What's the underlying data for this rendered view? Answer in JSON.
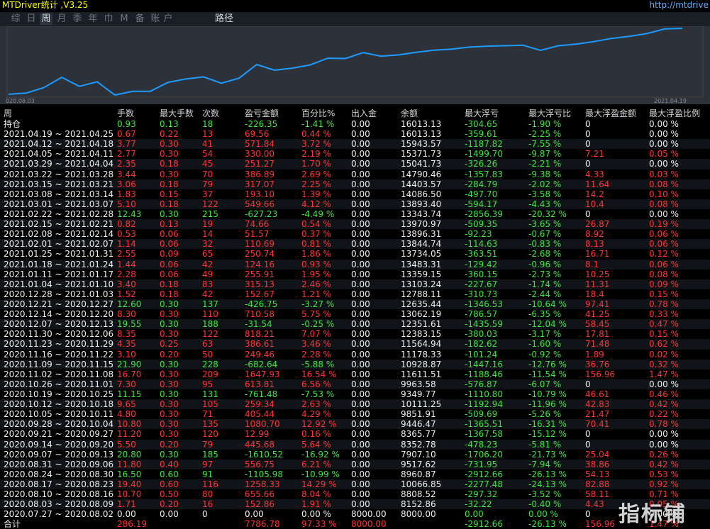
{
  "app": {
    "title": "MTDriver统计 ,V3.25",
    "link": "http://mtdrive"
  },
  "tabs": [
    "综",
    "日",
    "周",
    "月",
    "季",
    "年",
    "巾",
    "M",
    "备",
    "账",
    "户"
  ],
  "path_tab": "路径",
  "active_tab": "周",
  "chart": {
    "start_label": "020.08.03",
    "end_label": "2021.04.19",
    "line_color": "#1e9bff",
    "balance": [
      8000.0,
      8152.86,
      8808.52,
      10066.85,
      8960.87,
      9517.62,
      7907.1,
      8352.78,
      8365.77,
      9446.47,
      9851.91,
      10111.25,
      9349.77,
      9963.58,
      11611.51,
      10928.87,
      11178.33,
      11564.94,
      12383.15,
      12351.61,
      13062.19,
      12635.44,
      12788.11,
      13103.24,
      13359.15,
      13483.31,
      13734.05,
      13844.74,
      13896.31,
      13970.97,
      13343.74,
      13893.4,
      14086.5,
      14403.57,
      14790.46,
      15041.73,
      15371.73,
      15943.57,
      16013.13
    ]
  },
  "columns": [
    "周",
    "手数",
    "最大手数",
    "次数",
    "盈亏金额",
    "百分比%",
    "出入金",
    "余额",
    "最大浮亏",
    "最大浮亏比",
    "最大浮盈金额",
    "最大浮盈比例"
  ],
  "colors": {
    "loss": "#ff3535",
    "win": "#3ee63e",
    "neutral": "#f0f0f0"
  },
  "holding_row": [
    "持仓",
    "0.93",
    "0.13",
    "18",
    "-226.35",
    "-1.41 %",
    "0.00",
    "16013.13",
    "-304.65",
    "-1.90 %",
    "0",
    "0.00 %"
  ],
  "rows": [
    [
      "2021.04.19 ~ 2021.04.25",
      "0.67",
      "0.22",
      "13",
      "69.56",
      "0.44 %",
      "0.00",
      "16013.13",
      "-359.61",
      "-2.25 %",
      "0",
      "0.00 %"
    ],
    [
      "2021.04.12 ~ 2021.04.18",
      "3.77",
      "0.30",
      "41",
      "571.84",
      "3.72 %",
      "0.00",
      "15943.57",
      "-1187.82",
      "-7.55 %",
      "0",
      "0.00 %"
    ],
    [
      "2021.04.05 ~ 2021.04.11",
      "2.77",
      "0.30",
      "54",
      "330.00",
      "2.19 %",
      "0.00",
      "15371.73",
      "-1499.70",
      "-9.87 %",
      "7.21",
      "0.05 %"
    ],
    [
      "2021.03.29 ~ 2021.04.04",
      "2.35",
      "0.18",
      "45",
      "251.27",
      "1.70 %",
      "0.00",
      "15041.73",
      "-326.26",
      "-2.21 %",
      "0",
      "0.00 %"
    ],
    [
      "2021.03.22 ~ 2021.03.28",
      "3.44",
      "0.30",
      "70",
      "386.89",
      "2.69 %",
      "0.00",
      "14790.46",
      "-1357.83",
      "-9.38 %",
      "4.33",
      "0.03 %"
    ],
    [
      "2021.03.15 ~ 2021.03.21",
      "3.06",
      "0.18",
      "79",
      "317.07",
      "2.25 %",
      "0.00",
      "14403.57",
      "-284.79",
      "-2.02 %",
      "11.64",
      "0.08 %"
    ],
    [
      "2021.03.08 ~ 2021.03.14",
      "1.83",
      "0.15",
      "37",
      "193.10",
      "1.39 %",
      "0.00",
      "14086.50",
      "-497.70",
      "-3.58 %",
      "14.2",
      "0.10 %"
    ],
    [
      "2021.03.01 ~ 2021.03.07",
      "5.10",
      "0.18",
      "122",
      "549.66",
      "4.12 %",
      "0.00",
      "13893.40",
      "-594.17",
      "-4.43 %",
      "10.4",
      "0.08 %"
    ],
    [
      "2021.02.22 ~ 2021.02.28",
      "12.43",
      "0.30",
      "215",
      "-627.23",
      "-4.49 %",
      "0.00",
      "13343.74",
      "-2856.39",
      "-20.32 %",
      "0",
      "0.00 %"
    ],
    [
      "2021.02.15 ~ 2021.02.21",
      "0.82",
      "0.13",
      "19",
      "74.66",
      "0.54 %",
      "0.00",
      "13970.97",
      "-509.35",
      "-3.65 %",
      "26.87",
      "0.19 %"
    ],
    [
      "2021.02.08 ~ 2021.02.14",
      "0.53",
      "0.06",
      "14",
      "51.57",
      "0.37 %",
      "0.00",
      "13896.31",
      "-92.23",
      "-0.67 %",
      "8.92",
      "0.06 %"
    ],
    [
      "2021.02.01 ~ 2021.02.07",
      "1.14",
      "0.06",
      "32",
      "110.69",
      "0.81 %",
      "0.00",
      "13844.74",
      "-114.63",
      "-0.83 %",
      "8.13",
      "0.06 %"
    ],
    [
      "2021.01.25 ~ 2021.01.31",
      "2.55",
      "0.09",
      "65",
      "250.74",
      "1.86 %",
      "0.00",
      "13734.05",
      "-363.51",
      "-2.68 %",
      "16.71",
      "0.12 %"
    ],
    [
      "2021.01.18 ~ 2021.01.24",
      "1.44",
      "0.06",
      "42",
      "124.16",
      "0.93 %",
      "0.00",
      "13483.31",
      "-129.42",
      "-0.96 %",
      "8.1",
      "0.06 %"
    ],
    [
      "2021.01.11 ~ 2021.01.17",
      "2.28",
      "0.06",
      "49",
      "255.91",
      "1.95 %",
      "0.00",
      "13359.15",
      "-360.15",
      "-2.73 %",
      "10.25",
      "0.08 %"
    ],
    [
      "2021.01.04 ~ 2021.01.10",
      "3.40",
      "0.18",
      "83",
      "315.13",
      "2.46 %",
      "0.00",
      "13103.24",
      "-227.67",
      "-1.74 %",
      "11.31",
      "0.09 %"
    ],
    [
      "2020.12.28 ~ 2021.01.03",
      "1.52",
      "0.18",
      "42",
      "152.67",
      "1.21 %",
      "0.00",
      "12788.11",
      "-310.73",
      "-2.44 %",
      "18.4",
      "0.15 %"
    ],
    [
      "2020.12.21 ~ 2020.12.27",
      "12.60",
      "0.30",
      "137",
      "-426.75",
      "-3.27 %",
      "0.00",
      "12635.44",
      "-1346.53",
      "-10.64 %",
      "97.41",
      "0.78 %"
    ],
    [
      "2020.12.14 ~ 2020.12.20",
      "8.30",
      "0.30",
      "110",
      "710.58",
      "5.75 %",
      "0.00",
      "13062.19",
      "-786.57",
      "-6.35 %",
      "41.25",
      "0.33 %"
    ],
    [
      "2020.12.07 ~ 2020.12.13",
      "19.55",
      "0.30",
      "188",
      "-31.54",
      "-0.25 %",
      "0.00",
      "12351.61",
      "-1435.59",
      "-12.04 %",
      "58.45",
      "0.47 %"
    ],
    [
      "2020.11.30 ~ 2020.12.06",
      "8.35",
      "0.30",
      "122",
      "818.21",
      "7.07 %",
      "0.00",
      "12383.15",
      "-380.03",
      "-3.17 %",
      "17.81",
      "0.15 %"
    ],
    [
      "2020.11.23 ~ 2020.11.29",
      "4.35",
      "0.25",
      "63",
      "386.61",
      "3.46 %",
      "0.00",
      "11564.94",
      "-182.62",
      "-1.60 %",
      "71.48",
      "0.62 %"
    ],
    [
      "2020.11.16 ~ 2020.11.22",
      "3.10",
      "0.20",
      "50",
      "249.46",
      "2.28 %",
      "0.00",
      "11178.33",
      "-101.24",
      "-0.92 %",
      "1.89",
      "0.02 %"
    ],
    [
      "2020.11.09 ~ 2020.11.15",
      "21.90",
      "0.30",
      "228",
      "-682.64",
      "-5.88 %",
      "0.00",
      "10928.87",
      "-1447.16",
      "-12.76 %",
      "36.76",
      "0.32 %"
    ],
    [
      "2020.11.02 ~ 2020.11.08",
      "16.70",
      "0.30",
      "209",
      "1647.93",
      "16.54 %",
      "0.00",
      "11611.51",
      "-1188.46",
      "-11.54 %",
      "156.96",
      "1.47 %"
    ],
    [
      "2020.10.26 ~ 2020.11.01",
      "7.30",
      "0.30",
      "95",
      "613.81",
      "6.56 %",
      "0.00",
      "9963.58",
      "-576.87",
      "-6.07 %",
      "0",
      "0.00 %"
    ],
    [
      "2020.10.19 ~ 2020.10.25",
      "11.15",
      "0.30",
      "131",
      "-761.48",
      "-7.53 %",
      "0.00",
      "9349.77",
      "-1110.80",
      "-10.79 %",
      "46.61",
      "0.46 %"
    ],
    [
      "2020.10.12 ~ 2020.10.18",
      "9.65",
      "0.30",
      "105",
      "259.34",
      "2.63 %",
      "0.00",
      "10111.25",
      "-1192.94",
      "-11.96 %",
      "42.83",
      "0.42 %"
    ],
    [
      "2020.10.05 ~ 2020.10.11",
      "4.80",
      "0.30",
      "71",
      "405.44",
      "4.29 %",
      "0.00",
      "9851.91",
      "-509.69",
      "-5.26 %",
      "21.47",
      "0.22 %"
    ],
    [
      "2020.09.28 ~ 2020.10.04",
      "10.80",
      "0.30",
      "135",
      "1080.70",
      "12.92 %",
      "0.00",
      "9446.47",
      "-1365.51",
      "-16.31 %",
      "70.41",
      "0.78 %"
    ],
    [
      "2020.09.21 ~ 2020.09.27",
      "11.20",
      "0.30",
      "120",
      "12.99",
      "0.16 %",
      "0.00",
      "8365.77",
      "-1367.58",
      "-15.12 %",
      "0",
      "0.00 %"
    ],
    [
      "2020.09.14 ~ 2020.09.20",
      "5.50",
      "0.20",
      "79",
      "445.68",
      "5.64 %",
      "0.00",
      "8352.78",
      "-478.23",
      "-5.81 %",
      "0",
      "0.00 %"
    ],
    [
      "2020.09.07 ~ 2020.09.13",
      "20.80",
      "0.30",
      "185",
      "-1610.52",
      "-16.92 %",
      "0.00",
      "7907.10",
      "-1706.20",
      "-21.73 %",
      "25.04",
      "0.26 %"
    ],
    [
      "2020.08.31 ~ 2020.09.06",
      "11.80",
      "0.40",
      "97",
      "556.75",
      "6.21 %",
      "0.00",
      "9517.62",
      "-731.95",
      "-7.94 %",
      "38.86",
      "0.42 %"
    ],
    [
      "2020.08.24 ~ 2020.08.30",
      "16.50",
      "0.60",
      "91",
      "-1105.98",
      "-10.99 %",
      "0.00",
      "8960.87",
      "-2912.66",
      "-26.13 %",
      "54.13",
      "0.53 %"
    ],
    [
      "2020.08.17 ~ 2020.08.23",
      "19.40",
      "0.60",
      "116",
      "1258.33",
      "14.29 %",
      "0.00",
      "10066.85",
      "-2277.48",
      "-24.13 %",
      "82.88",
      "0.92 %"
    ],
    [
      "2020.08.10 ~ 2020.08.16",
      "10.70",
      "0.50",
      "80",
      "655.66",
      "8.04 %",
      "0.00",
      "8808.52",
      "-297.32",
      "-3.52 %",
      "58.11",
      "0.71 %"
    ],
    [
      "2020.08.03 ~ 2020.08.09",
      "1.71",
      "0.20",
      "16",
      "152.86",
      "1.91 %",
      "0.00",
      "8152.86",
      "-32.22",
      "-0.40 %",
      "4.43",
      "0.05 %"
    ],
    [
      "2020.07.27 ~ 2020.08.02",
      "0.00",
      "0.00",
      "0",
      "0.00",
      "0.00 %",
      "8000.00",
      "8000.00",
      "0.00",
      "0.00 %",
      "0",
      "0.00 %"
    ]
  ],
  "total_row": [
    "合计",
    "286.19",
    "",
    "",
    "7786.78",
    "97.33 %",
    "8000.00",
    "",
    "-2912.66",
    "-26.13 %",
    "156.96",
    "1.47 %"
  ],
  "watermark": "指标铺"
}
